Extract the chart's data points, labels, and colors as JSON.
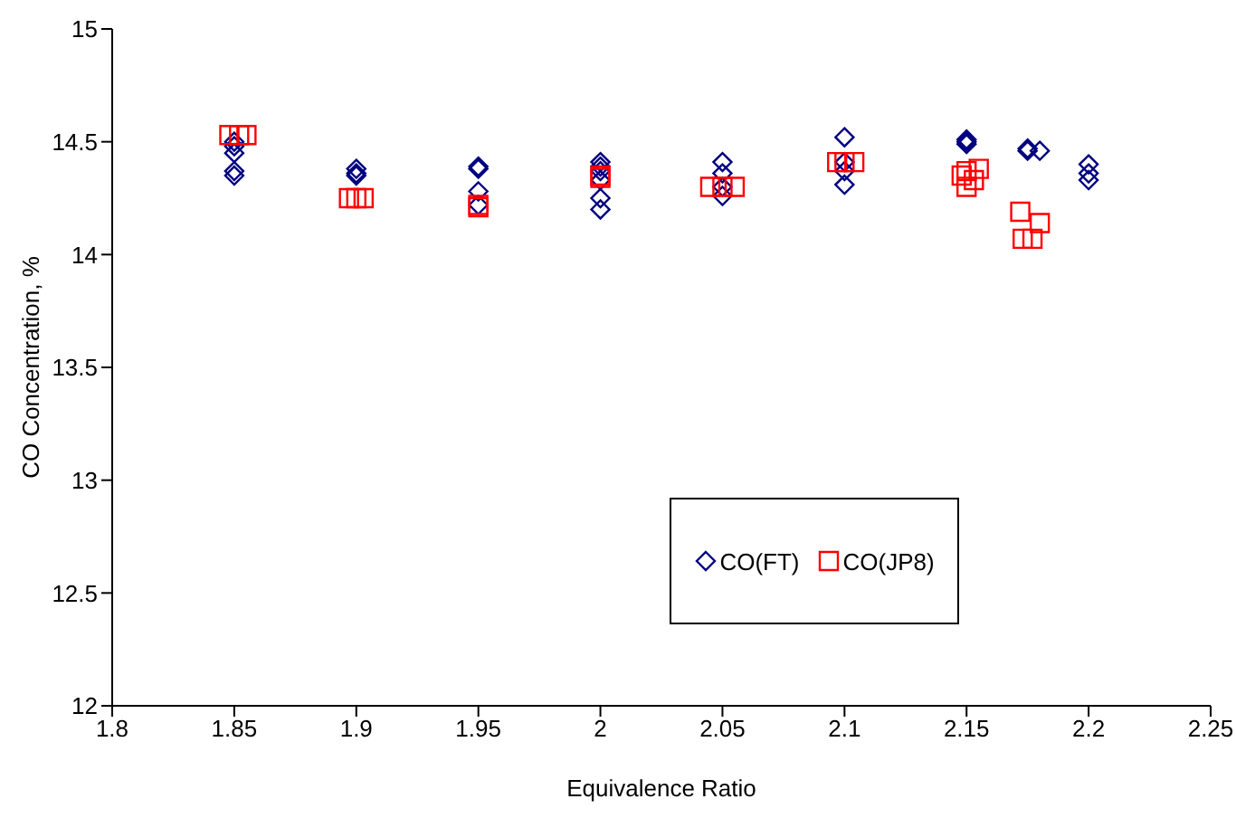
{
  "chart_data": {
    "type": "scatter",
    "xlabel": "Equivalence Ratio",
    "ylabel": "CO Concentration, %",
    "xlim": [
      1.8,
      2.25
    ],
    "xticks": [
      1.8,
      1.85,
      1.9,
      1.95,
      2,
      2.05,
      2.1,
      2.15,
      2.2,
      2.25
    ],
    "ylim": [
      12,
      15
    ],
    "yticks": [
      12,
      12.5,
      13,
      13.5,
      14,
      14.5,
      15
    ],
    "grid": false,
    "legend": "center",
    "series": [
      {
        "name": "CO(FT)",
        "color": "#000080",
        "marker": "diamond",
        "x": [
          1.85,
          1.85,
          1.85,
          1.85,
          1.85,
          1.9,
          1.9,
          1.9,
          1.95,
          1.95,
          1.95,
          1.95,
          2,
          2,
          2,
          2,
          2,
          2,
          2.05,
          2.05,
          2.05,
          2.05,
          2.1,
          2.1,
          2.1,
          2.1,
          2.15,
          2.15,
          2.15,
          2.175,
          2.175,
          2.18,
          2.2,
          2.2,
          2.2
        ],
        "values": [
          14.5,
          14.48,
          14.45,
          14.37,
          14.35,
          14.38,
          14.36,
          14.35,
          14.39,
          14.38,
          14.28,
          14.22,
          14.41,
          14.39,
          14.37,
          14.33,
          14.25,
          14.2,
          14.41,
          14.36,
          14.3,
          14.26,
          14.52,
          14.41,
          14.37,
          14.31,
          14.51,
          14.5,
          14.49,
          14.47,
          14.46,
          14.46,
          14.4,
          14.36,
          14.33
        ]
      },
      {
        "name": "CO(JP8)",
        "color": "#ff0000",
        "marker": "square",
        "x": [
          1.848,
          1.852,
          1.855,
          1.897,
          1.9,
          1.903,
          1.95,
          1.95,
          2,
          2,
          2.045,
          2.05,
          2.055,
          2.097,
          2.1,
          2.104,
          2.148,
          2.15,
          2.15,
          2.155,
          2.153,
          2.172,
          2.18,
          2.173,
          2.177
        ],
        "values": [
          14.53,
          14.53,
          14.53,
          14.25,
          14.25,
          14.25,
          14.22,
          14.21,
          14.35,
          14.34,
          14.3,
          14.3,
          14.3,
          14.41,
          14.41,
          14.41,
          14.35,
          14.37,
          14.3,
          14.38,
          14.33,
          14.19,
          14.14,
          14.07,
          14.07
        ]
      }
    ]
  }
}
